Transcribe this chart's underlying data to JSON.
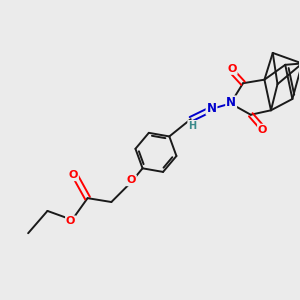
{
  "background_color": "#ebebeb",
  "bond_color": "#1a1a1a",
  "oxygen_color": "#ff0000",
  "nitrogen_color": "#0000cc",
  "hydrogen_color": "#3a8a8a",
  "line_width": 1.4,
  "figsize": [
    3.0,
    3.0
  ],
  "dpi": 100,
  "xlim": [
    0,
    10
  ],
  "ylim": [
    0,
    10
  ]
}
